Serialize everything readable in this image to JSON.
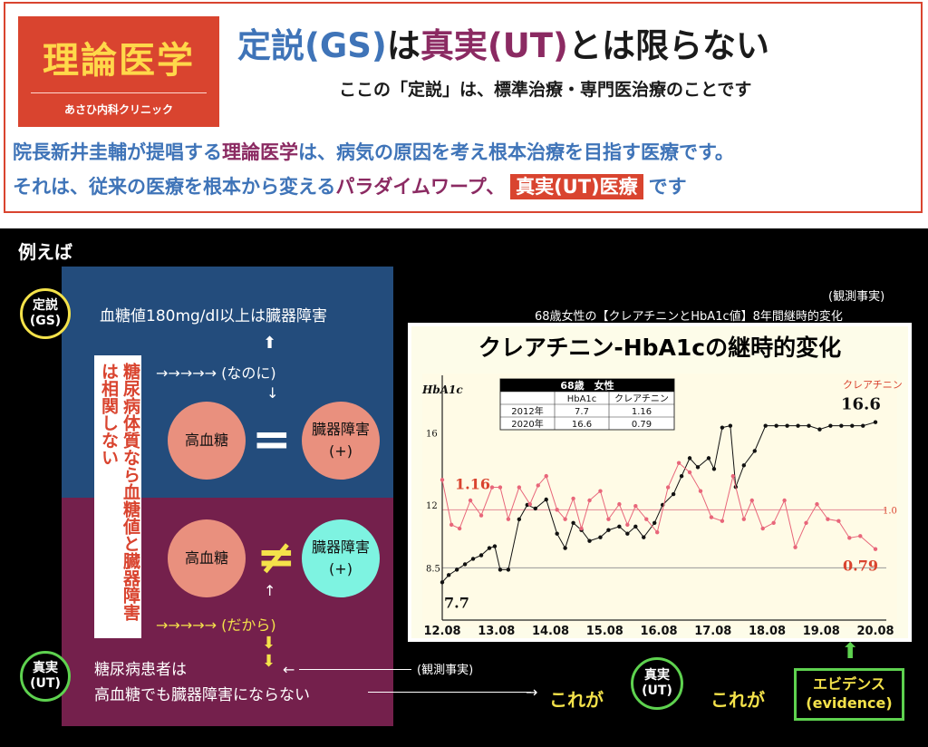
{
  "header": {
    "logo_title": "理論医学",
    "logo_sub": "あさひ内科クリニック",
    "headline": {
      "p1": "定説(GS)",
      "p2": "は",
      "p3": "真実(UT)",
      "p4": "とは限らない"
    },
    "subhead": "ここの「定説」は、標準治療・専門医治療のことです",
    "intro1": {
      "a": "院長新井圭輔が提唱する",
      "b": "理論医学",
      "c": "は、病気の原因を考え根本治療を目指す医療です。"
    },
    "intro2": {
      "a": "それは、従来の医療を根本から変える",
      "b": "パラダイムワープ、",
      "badge": "真実(UT)医療",
      "c": "です"
    }
  },
  "panel": {
    "rei": "例えば",
    "gs_badge": {
      "l1": "定説",
      "l2": "(GS)"
    },
    "gs_statement": "血糖値180mg/dl以上は臓器障害",
    "up_arrow": "⬆",
    "nanoni": "→→→→→ (なのに)",
    "down_arrow_small": "↓",
    "vertical_text": "糖尿病体質なら血糖値と臓器障害は相関しない",
    "circle_hyperglycemia_1": "高血糖",
    "circle_organ_1": {
      "l1": "臓器障害",
      "l2": "(+)"
    },
    "equals": "=",
    "circle_hyperglycemia_2": "高血糖",
    "circle_organ_2": {
      "l1": "臓器障害",
      "l2": "(+)"
    },
    "not_equal": "≠",
    "up_arrow_small": "↑",
    "dakara": "→→→→→ (だから)",
    "down_arrows": "⬇⬇",
    "observed_fact_right": "(観測事実)",
    "ut_badge": {
      "l1": "真実",
      "l2": "(UT)"
    },
    "ut_text1": "糖尿病患者は",
    "ut_text2": "高血糖でも臓器障害にならない",
    "korega1": "これが",
    "ut_badge2": {
      "l1": "真実",
      "l2": "(UT)"
    },
    "korega2": "これが",
    "evidence": {
      "l1": "エビデンス",
      "l2": "(evidence)"
    },
    "observed_fact_top": "(観測事実)",
    "chart_caption": "68歳女性の【クレアチニンとHbA1c値】8年間継時的変化",
    "arrow_left": "←",
    "arrow_right": "→",
    "green_up_arrow": "⬆"
  },
  "chart_data": {
    "type": "line",
    "title": "クレアチニン-HbA1cの継時的変化",
    "x_tick_labels": [
      "12.08",
      "13.08",
      "14.08",
      "15.08",
      "16.08",
      "17.08",
      "18.08",
      "19.08",
      "20.08"
    ],
    "x_range": [
      2012.58,
      2020.58
    ],
    "left_axis": {
      "label": "HbA1c",
      "ticks": [
        "16",
        "12",
        "8.5"
      ],
      "range": [
        6.0,
        18.5
      ]
    },
    "right_axis": {
      "label": "クレアチニン",
      "ticks": [
        "1.0"
      ],
      "range": [
        0.45,
        1.65
      ]
    },
    "grid": "horizontal reference lines at 8.5 (HbA1c) and 1.0 (creatinine)",
    "annotations": {
      "hba1c_start": "7.7",
      "hba1c_end": "16.6",
      "cre_start": "1.16",
      "cre_end": "0.79"
    },
    "table": {
      "header": [
        "68歳　女性",
        "",
        ""
      ],
      "columns": [
        "",
        "HbA1c",
        "クレアチニン"
      ],
      "rows": [
        [
          "2012年",
          "7.7",
          "1.16"
        ],
        [
          "2020年",
          "16.6",
          "0.79"
        ]
      ]
    },
    "series": [
      {
        "name": "HbA1c",
        "color": "#111111",
        "x": [
          2012.58,
          2012.7,
          2012.85,
          2013.0,
          2013.15,
          2013.3,
          2013.45,
          2013.55,
          2013.65,
          2013.8,
          2014.0,
          2014.15,
          2014.3,
          2014.5,
          2014.7,
          2014.85,
          2015.0,
          2015.15,
          2015.3,
          2015.5,
          2015.65,
          2015.85,
          2016.0,
          2016.15,
          2016.3,
          2016.5,
          2016.65,
          2016.85,
          2017.0,
          2017.15,
          2017.3,
          2017.5,
          2017.6,
          2017.75,
          2017.9,
          2018.0,
          2018.15,
          2018.35,
          2018.55,
          2018.75,
          2018.95,
          2019.15,
          2019.35,
          2019.55,
          2019.75,
          2019.95,
          2020.15,
          2020.35,
          2020.58
        ],
        "values": [
          7.7,
          8.1,
          8.4,
          8.7,
          9.0,
          9.2,
          9.6,
          9.7,
          8.4,
          8.4,
          11.2,
          12.0,
          11.8,
          12.3,
          10.4,
          9.6,
          11.0,
          10.6,
          10.0,
          10.2,
          10.6,
          10.8,
          10.4,
          10.8,
          10.2,
          11.0,
          12.0,
          12.6,
          13.6,
          14.6,
          14.1,
          14.6,
          14.0,
          16.3,
          16.4,
          13.0,
          14.2,
          15.0,
          16.4,
          16.4,
          16.4,
          16.4,
          16.4,
          16.2,
          16.4,
          16.4,
          16.4,
          16.4,
          16.6
        ]
      },
      {
        "name": "クレアチニン",
        "color": "#e8667a",
        "x": [
          2012.58,
          2012.75,
          2012.9,
          2013.1,
          2013.3,
          2013.5,
          2013.65,
          2013.8,
          2014.0,
          2014.2,
          2014.35,
          2014.5,
          2014.7,
          2014.85,
          2015.0,
          2015.15,
          2015.3,
          2015.5,
          2015.65,
          2015.85,
          2016.0,
          2016.15,
          2016.35,
          2016.55,
          2016.75,
          2016.95,
          2017.15,
          2017.35,
          2017.55,
          2017.75,
          2017.95,
          2018.15,
          2018.3,
          2018.5,
          2018.7,
          2018.9,
          2019.1,
          2019.3,
          2019.5,
          2019.7,
          2019.9,
          2020.1,
          2020.3,
          2020.58
        ],
        "values": [
          1.16,
          0.92,
          0.9,
          1.05,
          0.97,
          1.12,
          1.12,
          0.95,
          1.12,
          1.03,
          1.13,
          1.18,
          1.0,
          0.95,
          1.06,
          0.9,
          1.05,
          1.1,
          0.95,
          1.03,
          0.92,
          1.02,
          0.95,
          0.88,
          1.12,
          1.25,
          1.2,
          1.1,
          0.96,
          0.94,
          1.18,
          0.95,
          1.05,
          0.9,
          0.93,
          1.05,
          0.8,
          0.93,
          1.03,
          0.95,
          0.94,
          0.85,
          0.86,
          0.79
        ]
      }
    ]
  }
}
